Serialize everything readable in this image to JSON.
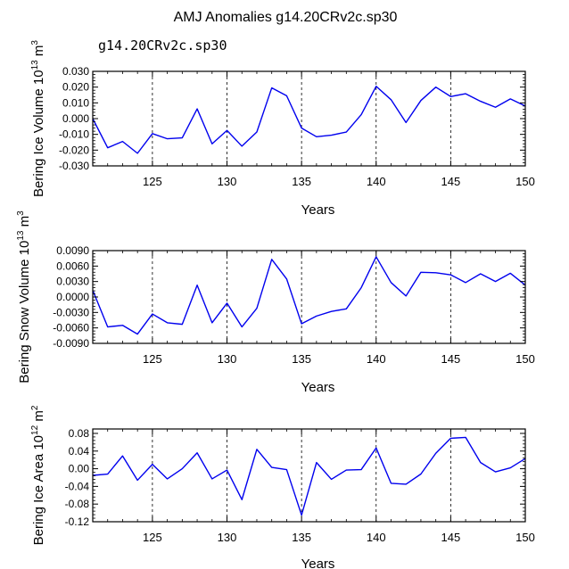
{
  "title": "AMJ Anomalies g14.20CRv2c.sp30",
  "subtitle": "g14.20CRv2c.sp30",
  "colors": {
    "line": "#0000ee",
    "subtitle": "#4a5fd9",
    "axis": "#000000",
    "grid": "#000000"
  },
  "chart_data": [
    {
      "type": "line",
      "ylabel": {
        "text": "Bering Ice Volume 10",
        "exp": "13",
        "unit": " m",
        "unit_exp": "3"
      },
      "xlabel": "Years",
      "xlim": [
        121,
        150
      ],
      "ylim": [
        -0.03,
        0.03
      ],
      "yticks": [
        "0.030",
        "0.020",
        "0.010",
        "0.000",
        "-0.010",
        "-0.020",
        "-0.030"
      ],
      "yticks_values": [
        0.03,
        0.02,
        0.01,
        0.0,
        -0.01,
        -0.02,
        -0.03
      ],
      "xticks": [
        125,
        130,
        135,
        140,
        145,
        150
      ],
      "vlines": [
        125,
        130,
        135,
        140,
        145
      ],
      "x": [
        121,
        122,
        123,
        124,
        125,
        126,
        127,
        128,
        129,
        130,
        131,
        132,
        133,
        134,
        135,
        136,
        137,
        138,
        139,
        140,
        141,
        142,
        143,
        144,
        145,
        146,
        147,
        148,
        149,
        150
      ],
      "values": [
        0.0,
        -0.0185,
        -0.0145,
        -0.022,
        -0.0095,
        -0.0128,
        -0.0122,
        0.0062,
        -0.016,
        -0.0075,
        -0.0175,
        -0.0085,
        0.0195,
        0.0145,
        -0.006,
        -0.0115,
        -0.0105,
        -0.0085,
        0.0025,
        0.0205,
        0.012,
        -0.0025,
        0.0115,
        0.02,
        0.014,
        0.0158,
        0.011,
        0.0072,
        0.0125,
        0.008
      ]
    },
    {
      "type": "line",
      "ylabel": {
        "text": "Bering Snow Volume 10",
        "exp": "13",
        "unit": " m",
        "unit_exp": "3"
      },
      "xlabel": "Years",
      "xlim": [
        121,
        150
      ],
      "ylim": [
        -0.009,
        0.009
      ],
      "yticks": [
        "0.0090",
        "0.0060",
        "0.0030",
        "0.0000",
        "-0.0030",
        "-0.0060",
        "-0.0090"
      ],
      "yticks_values": [
        0.009,
        0.006,
        0.003,
        0.0,
        -0.003,
        -0.006,
        -0.009
      ],
      "xticks": [
        125,
        130,
        135,
        140,
        145,
        150
      ],
      "vlines": [
        125,
        130,
        135,
        140,
        145
      ],
      "x": [
        121,
        122,
        123,
        124,
        125,
        126,
        127,
        128,
        129,
        130,
        131,
        132,
        133,
        134,
        135,
        136,
        137,
        138,
        139,
        140,
        141,
        142,
        143,
        144,
        145,
        146,
        147,
        148,
        149,
        150
      ],
      "values": [
        0.0013,
        -0.0058,
        -0.0055,
        -0.0072,
        -0.0033,
        -0.005,
        -0.0053,
        0.0023,
        -0.005,
        -0.0012,
        -0.0058,
        -0.0022,
        0.0073,
        0.0035,
        -0.0052,
        -0.0037,
        -0.0028,
        -0.0023,
        0.0018,
        0.0078,
        0.0028,
        0.0002,
        0.0048,
        0.0047,
        0.0043,
        0.0028,
        0.0045,
        0.003,
        0.0046,
        0.0023
      ]
    },
    {
      "type": "line",
      "ylabel": {
        "text": "Bering Ice Area 10",
        "exp": "12",
        "unit": " m",
        "unit_exp": "2"
      },
      "xlabel": "Years",
      "xlim": [
        121,
        150
      ],
      "ylim": [
        -0.12,
        0.09
      ],
      "yticks": [
        "0.08",
        "0.04",
        "0.00",
        "-0.04",
        "-0.08",
        "-0.12"
      ],
      "yticks_values": [
        0.08,
        0.04,
        0.0,
        -0.04,
        -0.08,
        -0.12
      ],
      "xticks": [
        125,
        130,
        135,
        140,
        145,
        150
      ],
      "vlines": [
        125,
        130,
        135,
        140,
        145
      ],
      "x": [
        121,
        122,
        123,
        124,
        125,
        126,
        127,
        128,
        129,
        130,
        131,
        132,
        133,
        134,
        135,
        136,
        137,
        138,
        139,
        140,
        141,
        142,
        143,
        144,
        145,
        146,
        147,
        148,
        149,
        150
      ],
      "values": [
        -0.015,
        -0.012,
        0.029,
        -0.026,
        0.01,
        -0.023,
        0.0,
        0.036,
        -0.023,
        -0.003,
        -0.07,
        0.044,
        0.003,
        -0.002,
        -0.105,
        0.014,
        -0.024,
        -0.003,
        -0.002,
        0.047,
        -0.033,
        -0.035,
        -0.012,
        0.035,
        0.069,
        0.071,
        0.014,
        -0.007,
        0.002,
        0.023
      ]
    }
  ]
}
